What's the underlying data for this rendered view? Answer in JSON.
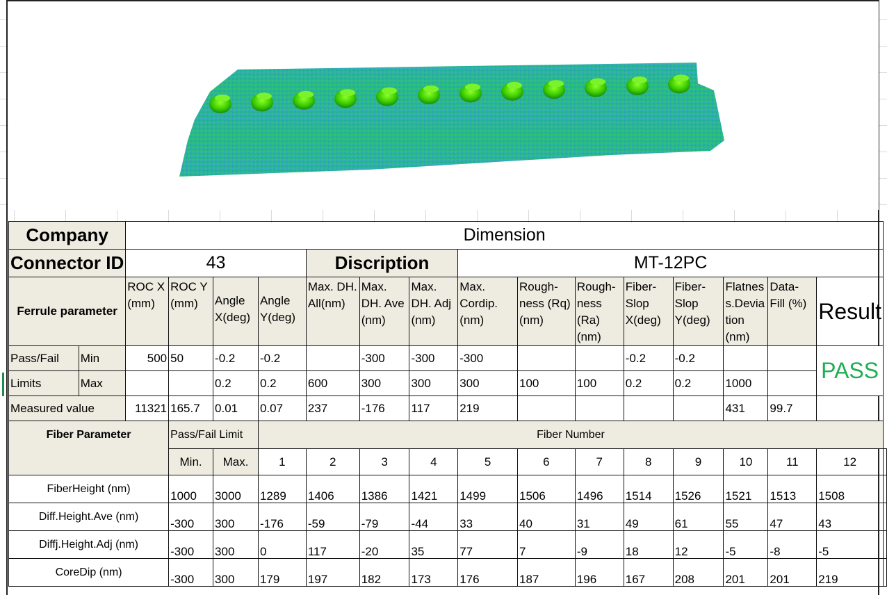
{
  "header": {
    "company_label": "Company",
    "company_value": "Dimension",
    "connector_label": "Connector  ID",
    "connector_value": "43",
    "description_label": "Discription",
    "description_value": "MT-12PC"
  },
  "ferrule": {
    "title": "Ferrule parameter",
    "columns": [
      "ROC X (mm)",
      "ROC Y (mm)",
      "Angle X(deg)",
      "Angle Y(deg)",
      "Max. DH. All(nm)",
      "Max. DH. Ave (nm)",
      "Max. DH. Adj (nm)",
      "Max. Cordip. (nm)",
      "Rough- ness (Rq)(nm)",
      "Rough- ness (Ra)(nm)",
      "Fiber- Slop X(deg)",
      "Fiber- Slop Y(deg)",
      "Flatnes s.Devia tion (nm)",
      "Data- Fill (%)"
    ],
    "result_label": "Result",
    "passfail_label": "Pass/Fail",
    "limits_label": "Limits",
    "min_label": "Min",
    "max_label": "Max",
    "min": [
      "500",
      "50",
      "-0.2",
      "-0.2",
      "",
      "-300",
      "-300",
      "-300",
      "",
      "",
      "-0.2",
      "-0.2",
      "",
      ""
    ],
    "max": [
      "",
      "",
      "0.2",
      "0.2",
      "600",
      "300",
      "300",
      "300",
      "100",
      "100",
      "0.2",
      "0.2",
      "1000",
      ""
    ],
    "measured_label": "Measured value",
    "measured": [
      "11321",
      "165.7",
      "0.01",
      "0.07",
      "237",
      "-176",
      "117",
      "219",
      "",
      "",
      "",
      "",
      "431",
      "99.7"
    ],
    "result": "PASS"
  },
  "fiber": {
    "title": "Fiber Parameter",
    "limit_label": "Pass/Fail  Limit",
    "number_label": "Fiber Number",
    "min_label": "Min.",
    "max_label": "Max.",
    "numbers": [
      "1",
      "2",
      "3",
      "4",
      "5",
      "6",
      "7",
      "8",
      "9",
      "10",
      "11",
      "12"
    ],
    "rows": [
      {
        "label": "FiberHeight (nm)",
        "min": "1000",
        "max": "3000",
        "values": [
          "1289",
          "1406",
          "1386",
          "1421",
          "1499",
          "1506",
          "1496",
          "1514",
          "1526",
          "1521",
          "1513",
          "1508"
        ]
      },
      {
        "label": "Diff.Height.Ave (nm)",
        "min": "-300",
        "max": "300",
        "values": [
          "-176",
          "-59",
          "-79",
          "-44",
          "33",
          "40",
          "31",
          "49",
          "61",
          "55",
          "47",
          "43"
        ]
      },
      {
        "label": "Diffj.Height.Adj (nm)",
        "min": "-300",
        "max": "300",
        "values": [
          "0",
          "117",
          "-20",
          "35",
          "77",
          "7",
          "-9",
          "18",
          "12",
          "-5",
          "-8",
          "-5"
        ]
      },
      {
        "label": "CoreDip (nm)",
        "min": "-300",
        "max": "300",
        "values": [
          "179",
          "197",
          "182",
          "173",
          "176",
          "187",
          "196",
          "167",
          "208",
          "201",
          "201",
          "219"
        ]
      }
    ]
  },
  "colors": {
    "pass": "#1fae54",
    "header_bg": "#eeece1",
    "surface": "#1fb39a",
    "fiber_tip": "#4fd400"
  }
}
